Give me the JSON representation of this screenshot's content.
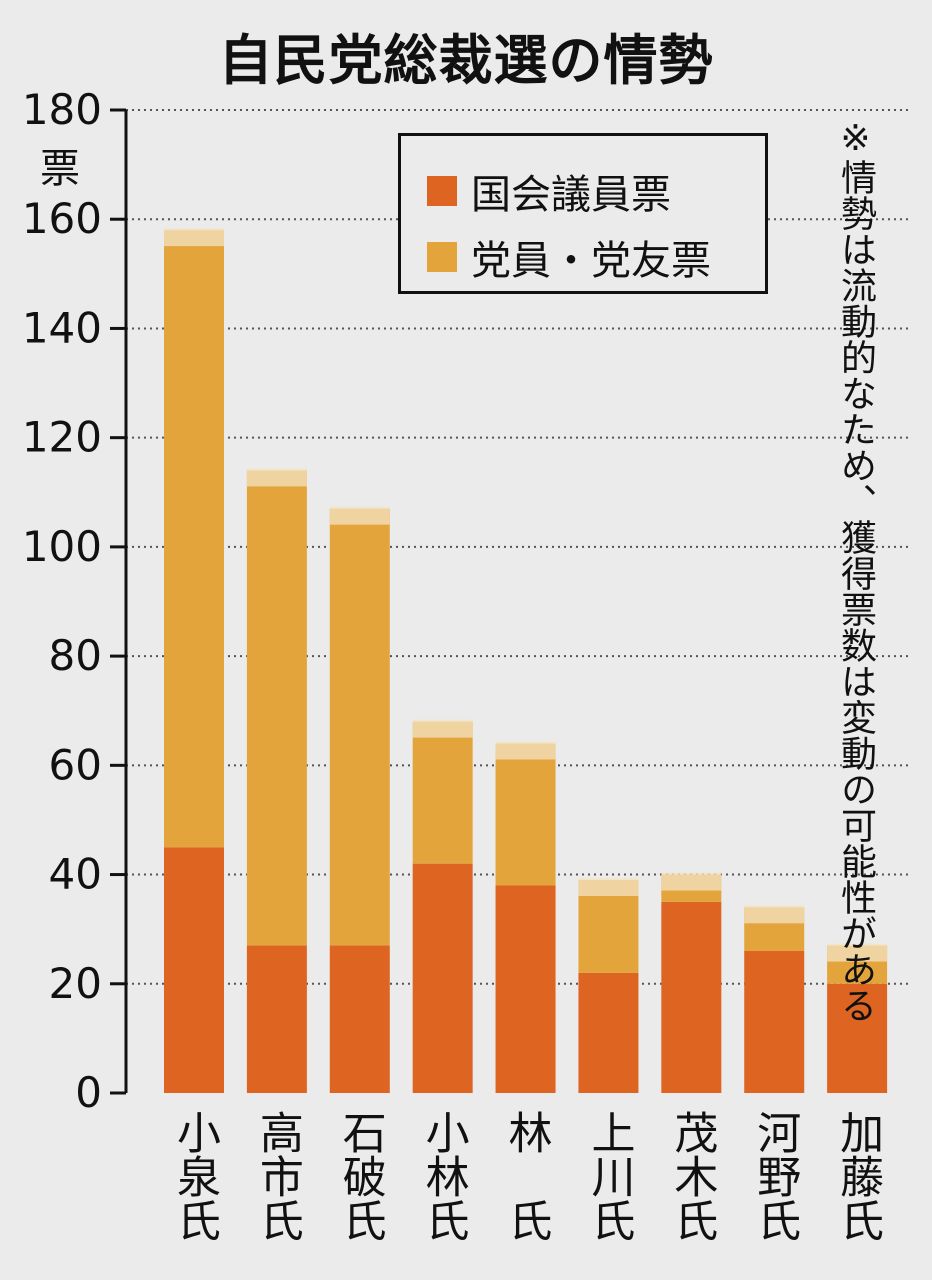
{
  "chart_data": {
    "type": "bar",
    "stacked": true,
    "title": "自民党総裁選の情勢",
    "ylabel": "票",
    "ylim": [
      0,
      180
    ],
    "yticks": [
      0,
      20,
      40,
      60,
      80,
      100,
      120,
      140,
      160,
      180
    ],
    "categories": [
      "小泉氏",
      "高市氏",
      "石破氏",
      "小林氏",
      "林　氏",
      "上川氏",
      "茂木氏",
      "河野氏",
      "加藤氏"
    ],
    "series": [
      {
        "name": "国会議員票",
        "color": "#de6422",
        "values": [
          45,
          27,
          27,
          42,
          38,
          22,
          35,
          26,
          20
        ]
      },
      {
        "name": "党員・党友票",
        "color": "#e3a43c",
        "values": [
          113,
          87,
          80,
          26,
          26,
          17,
          5,
          8,
          7
        ]
      }
    ],
    "grid": true,
    "legend_position": "top-right",
    "note": "※情勢は流動的なため、獲得票数は変動の可能性がある"
  }
}
